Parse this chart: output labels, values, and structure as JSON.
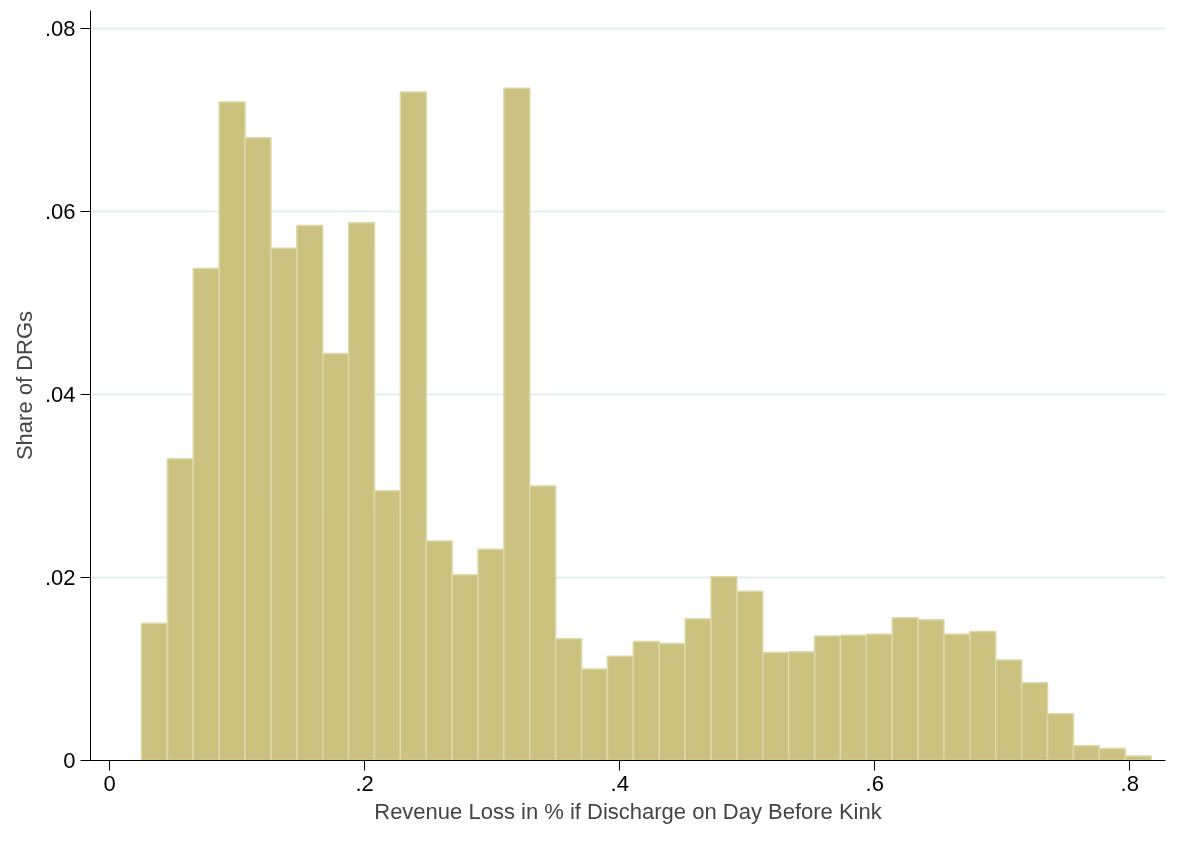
{
  "chart_data": {
    "type": "histogram",
    "xlabel": "Revenue Loss in % if Discharge on Day Before Kink",
    "ylabel": "Share of DRGs",
    "bins": [
      0.025,
      0.0453,
      0.0656,
      0.0859,
      0.1062,
      0.1265,
      0.1468,
      0.1671,
      0.1874,
      0.2077,
      0.228,
      0.2483,
      0.2686,
      0.2889,
      0.3092,
      0.3295,
      0.3498,
      0.3701,
      0.3904,
      0.4107,
      0.431,
      0.4513,
      0.4716,
      0.4919,
      0.5122,
      0.5325,
      0.5528,
      0.5731,
      0.5934,
      0.6137,
      0.634,
      0.6543,
      0.6746,
      0.6949,
      0.7152,
      0.7355,
      0.7558,
      0.7761,
      0.7964,
      0.8167
    ],
    "values": [
      0.015,
      0.033,
      0.0538,
      0.072,
      0.0681,
      0.056,
      0.0585,
      0.0445,
      0.0588,
      0.0295,
      0.0731,
      0.024,
      0.0203,
      0.0231,
      0.0735,
      0.03,
      0.0133,
      0.01,
      0.0114,
      0.013,
      0.0128,
      0.0155,
      0.0201,
      0.0185,
      0.0118,
      0.0119,
      0.0136,
      0.0137,
      0.0138,
      0.0156,
      0.0154,
      0.0138,
      0.0141,
      0.011,
      0.0085,
      0.0051,
      0.0016,
      0.0013,
      0.0005
    ],
    "color": "#cbc27f",
    "xlim": [
      -0.015,
      0.828
    ],
    "ylim": [
      0,
      0.082
    ],
    "xticks": [
      {
        "value": 0,
        "label": "0"
      },
      {
        "value": 0.2,
        "label": ".2"
      },
      {
        "value": 0.4,
        "label": ".4"
      },
      {
        "value": 0.6,
        "label": ".6"
      },
      {
        "value": 0.8,
        "label": ".8"
      }
    ],
    "yticks": [
      {
        "value": 0,
        "label": "0"
      },
      {
        "value": 0.02,
        "label": ".02"
      },
      {
        "value": 0.04,
        "label": ".04"
      },
      {
        "value": 0.06,
        "label": ".06"
      },
      {
        "value": 0.08,
        "label": ".08"
      }
    ],
    "grid": "y"
  }
}
